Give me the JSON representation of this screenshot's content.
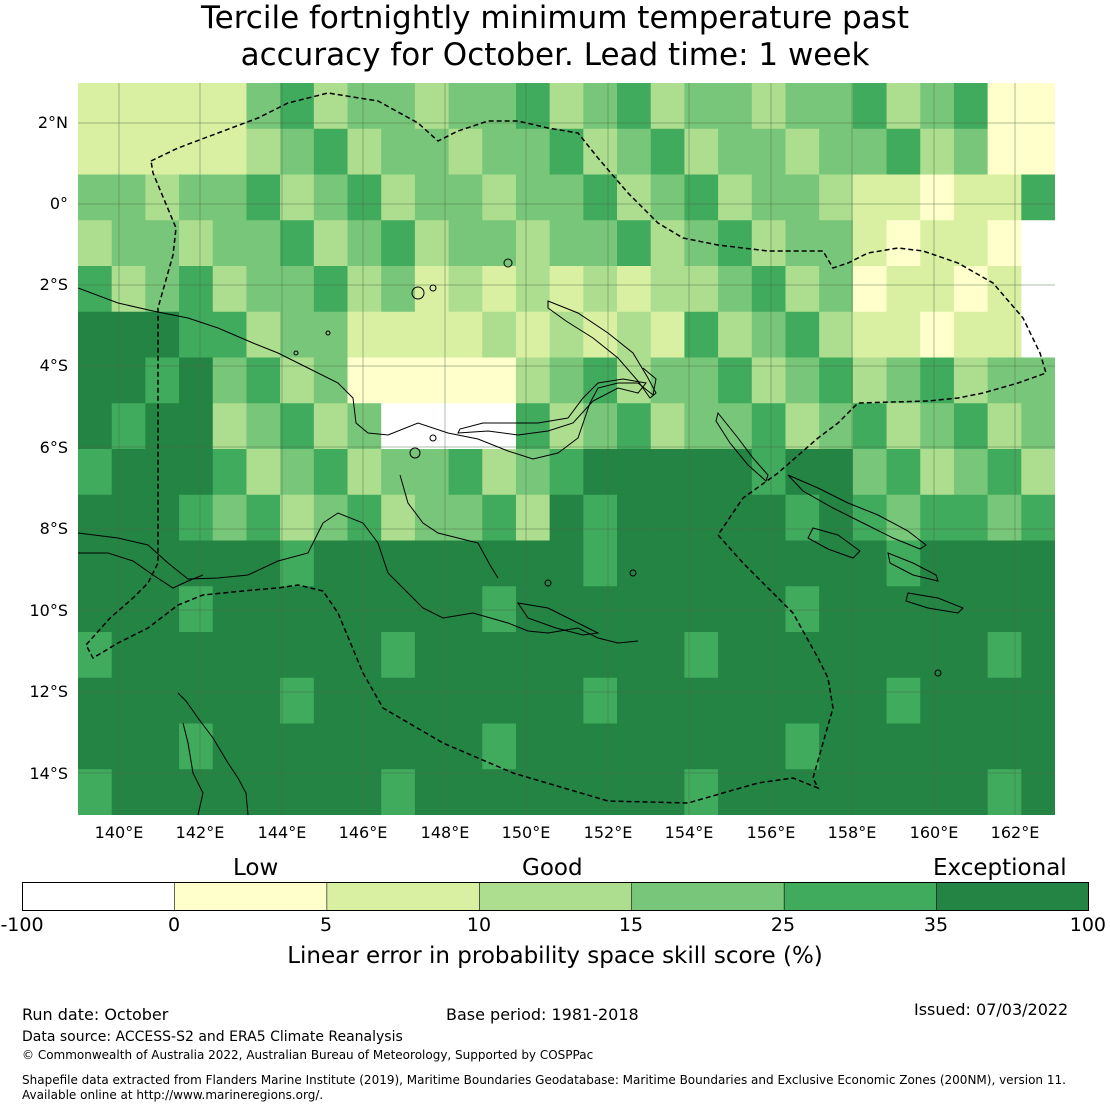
{
  "title": {
    "line1": "Tercile fortnightly minimum temperature past",
    "line2": "accuracy for October. Lead time: 1 week"
  },
  "map": {
    "region": "Papua New Guinea",
    "lat_labels": [
      "2°N",
      "0°",
      "2°S",
      "4°S",
      "6°S",
      "8°S",
      "10°S",
      "12°S",
      "14°S"
    ],
    "lon_labels": [
      "140°E",
      "142°E",
      "144°E",
      "146°E",
      "148°E",
      "150°E",
      "152°E",
      "154°E",
      "156°E",
      "158°E",
      "160°E",
      "162°E"
    ]
  },
  "legend": {
    "categories": [
      "Low",
      "Good",
      "Exceptional"
    ],
    "ticks": [
      "-100",
      "0",
      "5",
      "10",
      "15",
      "25",
      "35",
      "100"
    ],
    "colors": [
      "#ffffff",
      "#ffffcc",
      "#d9f0a3",
      "#addd8e",
      "#78c679",
      "#41ab5d",
      "#238443"
    ],
    "title": "Linear error in probability space skill score (%)"
  },
  "footer": {
    "run_date": "Run date: October",
    "base_period": "Base period: 1981-2018",
    "issued": "Issued: 07/03/2022",
    "data_source": "Data source: ACCESS-S2 and ERA5 Climate Reanalysis",
    "copyright": "© Commonwealth of Australia 2022, Australian Bureau of Meteorology, Supported by COSPPac",
    "shapefile_line1": "Shapefile data extracted from Flanders Marine Institute (2019), Maritime Boundaries Geodatabase: Maritime Boundaries and Exclusive Economic Zones (200NM), version 11.",
    "shapefile_line2": "Available online at http://www.marineregions.org/."
  }
}
